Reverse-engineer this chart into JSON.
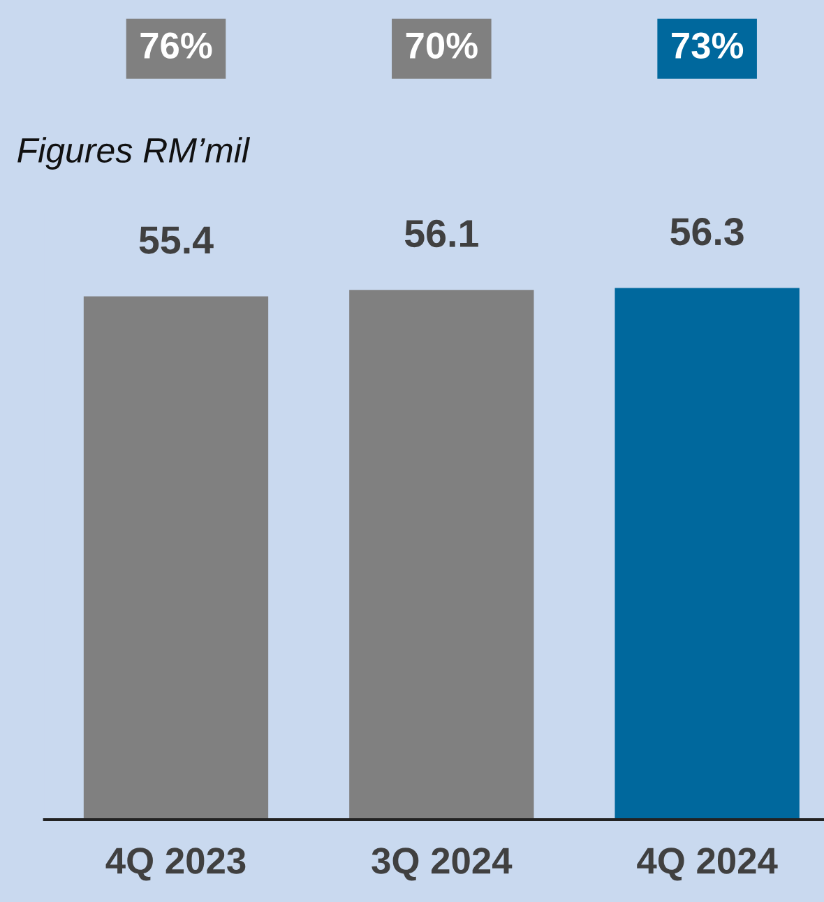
{
  "chart_data": {
    "type": "bar",
    "subtitle": "Figures RM’mil",
    "categories": [
      "4Q 2023",
      "3Q 2024",
      "4Q 2024"
    ],
    "values": [
      55.4,
      56.1,
      56.3
    ],
    "colors": [
      "#808080",
      "#808080",
      "#00689d"
    ],
    "data_labels": true,
    "grid": false,
    "tick_labels": "x",
    "annotations": [
      "76%",
      "70%",
      "73%"
    ]
  }
}
